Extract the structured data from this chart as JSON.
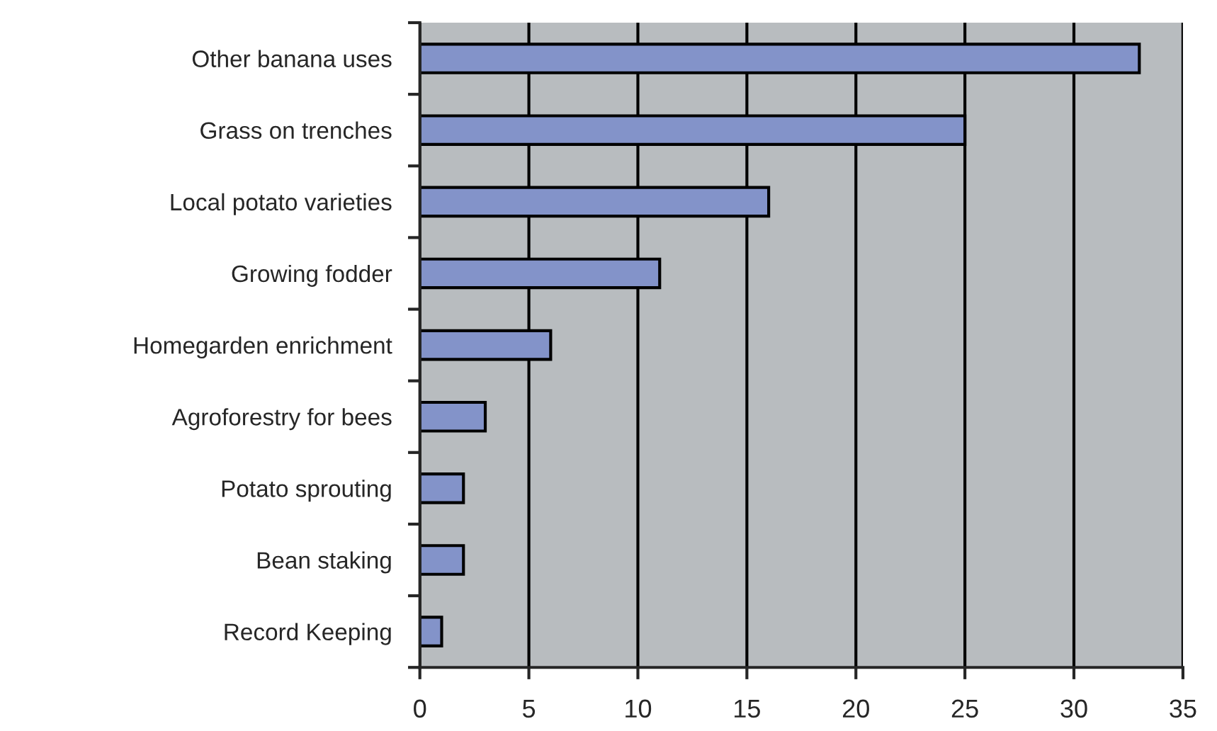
{
  "chart_data": {
    "type": "bar",
    "orientation": "horizontal",
    "categories": [
      "Other banana uses",
      "Grass on trenches",
      "Local potato varieties",
      "Growing fodder",
      "Homegarden enrichment",
      "Agroforestry for bees",
      "Potato sprouting",
      "Bean staking",
      "Record Keeping"
    ],
    "values": [
      33,
      25,
      16,
      11,
      6,
      3,
      2,
      2,
      1
    ],
    "color": "#8393c9",
    "xlim": [
      0,
      35
    ],
    "xticks": [
      0,
      5,
      10,
      15,
      20,
      25,
      30,
      35
    ],
    "grid": "x"
  }
}
